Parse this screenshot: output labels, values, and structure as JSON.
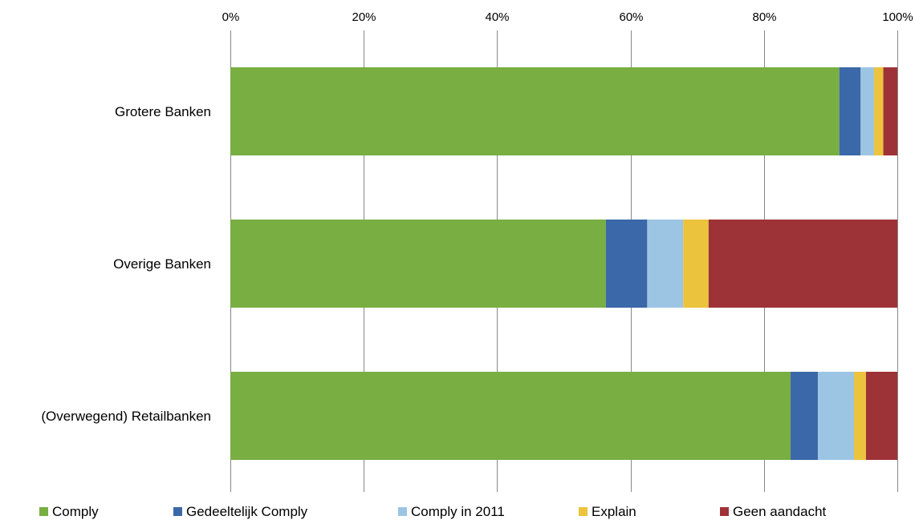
{
  "chart_data": {
    "type": "bar",
    "orientation": "horizontal",
    "stacking": "percent",
    "title": "",
    "xlabel": "",
    "ylabel": "",
    "xlim": [
      0,
      100
    ],
    "x_axis_position": "top",
    "grid": true,
    "legend_position": "bottom",
    "ticks": [
      "0%",
      "20%",
      "40%",
      "60%",
      "80%",
      "100%"
    ],
    "tick_values": [
      0,
      20,
      40,
      60,
      80,
      100
    ],
    "categories": [
      "Grotere Banken",
      "Overige Banken",
      "(Overwegend) Retailbanken"
    ],
    "series": [
      {
        "name": "Comply",
        "color": "#78AE42",
        "values": [
          91.3,
          56.3,
          84.0
        ]
      },
      {
        "name": "Gedeeltelijk Comply",
        "color": "#3B68A8",
        "values": [
          3.2,
          6.2,
          4.1
        ]
      },
      {
        "name": "Comply in 2011",
        "color": "#9CC5E4",
        "values": [
          2.0,
          5.4,
          5.4
        ]
      },
      {
        "name": "Explain",
        "color": "#ECC33D",
        "values": [
          1.4,
          3.8,
          1.8
        ]
      },
      {
        "name": "Geen aandacht",
        "color": "#9E3337",
        "values": [
          2.1,
          28.3,
          4.7
        ]
      }
    ]
  }
}
